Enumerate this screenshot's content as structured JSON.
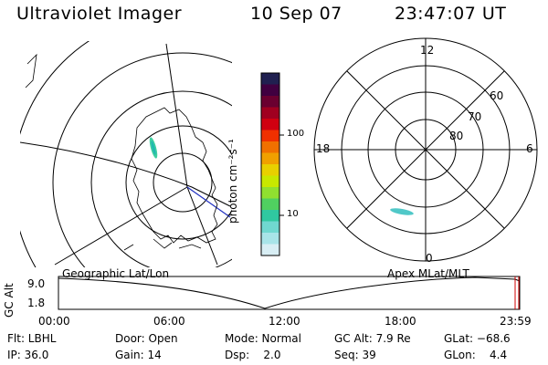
{
  "header": {
    "instrument": "Ultraviolet Imager",
    "date": "10 Sep 07",
    "time": "23:47:07 UT"
  },
  "colorbar": {
    "unit_label": "photon cm⁻²s⁻¹",
    "ticks": [
      "100",
      "10"
    ],
    "colors": [
      "#202050",
      "#400040",
      "#6a0030",
      "#a00020",
      "#d00010",
      "#f03000",
      "#f07000",
      "#f0a000",
      "#e8d000",
      "#c8e800",
      "#90e030",
      "#50d060",
      "#30c8a0",
      "#70d8d0",
      "#a8e4e8",
      "#d8eef4"
    ]
  },
  "geo_panel": {
    "label": "Geographic Lat/Lon"
  },
  "polar_panel": {
    "label": "Apex MLat/MLT",
    "mlt_labels": {
      "top": "12",
      "bottom": "0",
      "left": "18",
      "right": "6"
    },
    "lat_labels": [
      "60",
      "70",
      "80"
    ]
  },
  "timeline": {
    "axis_label": "GC Alt",
    "y_ticks": [
      "9.0",
      "1.8"
    ],
    "x_ticks": [
      "00:00",
      "06:00",
      "12:00",
      "18:00",
      "23:59"
    ],
    "line_color": "#000000",
    "marker_color": "#d00000"
  },
  "status": {
    "flt": "Flt: LBHL",
    "door": "Door: Open",
    "mode": "Mode: Normal",
    "gc_alt": "GC Alt: 7.9 Re",
    "glat": "GLat: −68.6",
    "ip": "IP: 36.0",
    "gain": "Gain: 14",
    "dsp": "Dsp:    2.0",
    "seq": "Seq: 39",
    "glon": "GLon:    4.4"
  }
}
